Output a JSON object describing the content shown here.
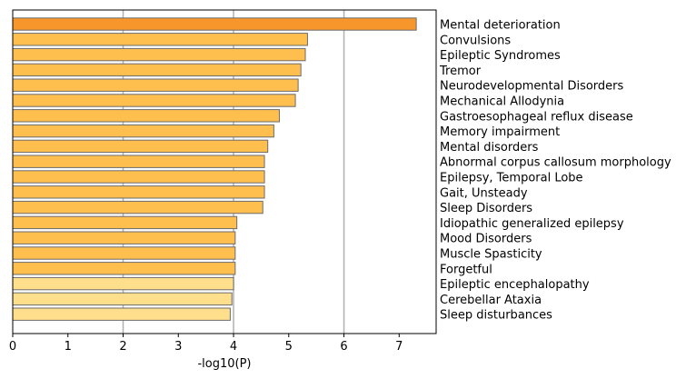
{
  "chart_data": {
    "type": "bar",
    "orientation": "horizontal",
    "title": "",
    "xlabel": "-log10(P)",
    "ylabel": "",
    "xlim": [
      0,
      7.67
    ],
    "xticks": [
      0,
      1,
      2,
      3,
      4,
      5,
      6,
      7
    ],
    "grid": "vertical at x = 2, 4, 6",
    "category_labels_side": "right",
    "categories": [
      "Mental deterioration",
      "Convulsions",
      "Epileptic Syndromes",
      "Tremor",
      "Neurodevelopmental Disorders",
      "Mechanical Allodynia",
      "Gastroesophageal reflux disease",
      "Memory impairment",
      "Mental disorders",
      "Abnormal corpus callosum morphology",
      "Epilepsy, Temporal Lobe",
      "Gait, Unsteady",
      "Sleep Disorders",
      "Idiopathic generalized epilepsy",
      "Mood Disorders",
      "Muscle Spasticity",
      "Forgetful",
      "Epileptic encephalopathy",
      "Cerebellar Ataxia",
      "Sleep disturbances"
    ],
    "values": [
      7.31,
      5.34,
      5.3,
      5.22,
      5.17,
      5.12,
      4.83,
      4.73,
      4.62,
      4.56,
      4.56,
      4.56,
      4.53,
      4.06,
      4.03,
      4.03,
      4.03,
      4.0,
      3.97,
      3.94
    ],
    "colors": [
      "#f7962a",
      "#ffbf4e",
      "#ffbf4e",
      "#ffbf4e",
      "#ffbf4e",
      "#ffbf4e",
      "#ffbf4e",
      "#ffbf4e",
      "#ffbf4e",
      "#ffbf4e",
      "#ffbf4e",
      "#ffbf4e",
      "#ffbf4e",
      "#ffbf4e",
      "#ffbf4e",
      "#ffbf4e",
      "#ffbf4e",
      "#ffdf8c",
      "#ffdf8c",
      "#ffdf8c"
    ],
    "bar_edge_color": "#6b6b6b",
    "grid_color": "#b0b0b0"
  }
}
